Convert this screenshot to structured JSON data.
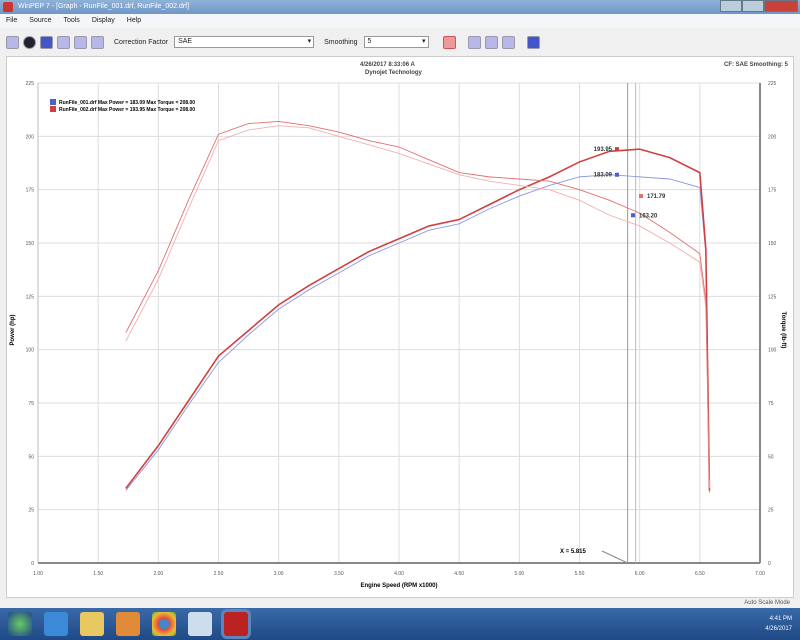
{
  "window": {
    "title": "WinPEP 7 - [Graph - RunFile_001.drf, RunFile_002.drf]"
  },
  "menu": [
    "File",
    "Source",
    "Tools",
    "Display",
    "Help"
  ],
  "toolbar": {
    "correction_label": "Correction Factor",
    "correction_value": "SAE",
    "smoothing_label": "Smoothing",
    "smoothing_value": "5"
  },
  "header": {
    "datetime": "4/26/2017 8:33:06 A",
    "company": "Dynojet Technology",
    "cf_smoothing": "CF: SAE  Smoothing: 5"
  },
  "status": "Auto Scale Mode",
  "tray": {
    "time": "4:41 PM",
    "date": "4/26/2017"
  },
  "chart_data": {
    "type": "line",
    "xlabel": "Engine Speed (RPM x1000)",
    "ylabel_left": "Power (hp)",
    "ylabel_right": "Torque (lb-ft)",
    "xlim": [
      1.0,
      7.0
    ],
    "ylim": [
      0,
      225
    ],
    "xticks": [
      "1.00",
      "1.50",
      "2.00",
      "2.50",
      "3.00",
      "3.50",
      "4.00",
      "4.50",
      "5.00",
      "5.50",
      "6.00",
      "6.50",
      "7.00"
    ],
    "yticks": [
      "0",
      "25",
      "50",
      "75",
      "100",
      "125",
      "150",
      "175",
      "200",
      "225"
    ],
    "grid": true,
    "legend_position": "top-left",
    "legend": [
      "RunFile_001.drf Max Power = 183.09 Max Torque = 208.00",
      "RunFile_002.drf Max Power = 193.95 Max Torque = 208.00"
    ],
    "colors": {
      "run1": "#4a5fd0",
      "run2": "#d04040"
    },
    "x": [
      1.73,
      2.0,
      2.25,
      2.5,
      2.75,
      3.0,
      3.25,
      3.5,
      3.75,
      4.0,
      4.25,
      4.5,
      4.75,
      5.0,
      5.25,
      5.5,
      5.75,
      6.0,
      6.25,
      6.5,
      6.55,
      6.58
    ],
    "series": [
      {
        "name": "RunFile_001.drf",
        "measure": "power",
        "values": [
          34,
          53,
          74,
          94,
          107,
          119,
          128,
          136,
          144,
          150,
          156,
          159,
          166,
          172,
          177,
          181,
          182,
          181,
          180,
          176,
          145,
          33
        ]
      },
      {
        "name": "RunFile_002.drf",
        "measure": "power",
        "values": [
          35,
          55,
          76,
          97,
          109,
          121,
          130,
          138,
          146,
          152,
          158,
          161,
          168,
          175,
          181,
          188,
          193,
          194,
          190,
          183,
          147,
          34
        ]
      },
      {
        "name": "RunFile_001.drf",
        "measure": "torque",
        "values": [
          104,
          133,
          166,
          198,
          203,
          205,
          204,
          200,
          196,
          192,
          187,
          182,
          179,
          177,
          175,
          170,
          163,
          158,
          150,
          141,
          120,
          35
        ]
      },
      {
        "name": "RunFile_002.drf",
        "measure": "torque",
        "values": [
          108,
          137,
          170,
          201,
          206,
          207,
          205,
          202,
          198,
          195,
          189,
          183,
          181,
          180,
          179,
          175,
          170,
          164,
          155,
          145,
          123,
          39
        ]
      }
    ],
    "annotations": [
      "193.95",
      "183.09",
      "171.79",
      "163.20"
    ],
    "cursor_label": "X = 5.815"
  }
}
